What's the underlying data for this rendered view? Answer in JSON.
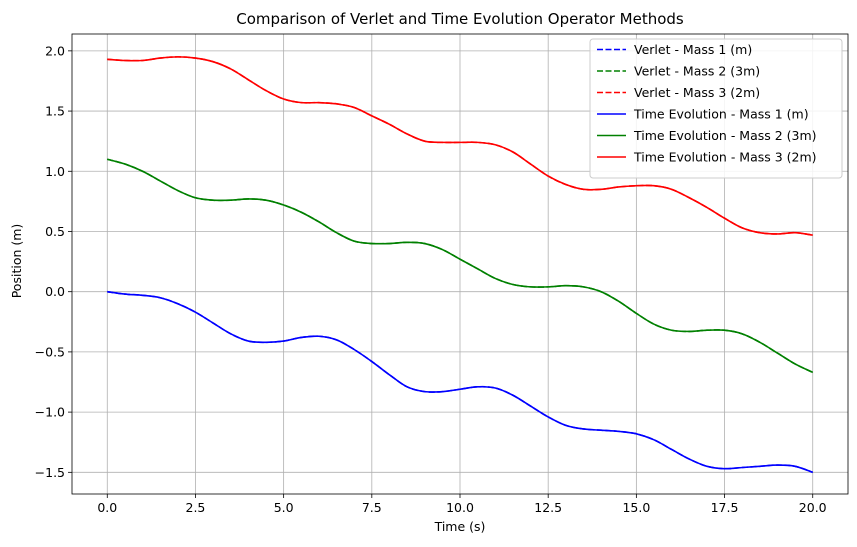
{
  "chart_data": {
    "type": "line",
    "title": "Comparison of Verlet and Time Evolution Operator Methods",
    "xlabel": "Time (s)",
    "ylabel": "Position (m)",
    "xlim": [
      -1.0,
      21.0
    ],
    "ylim": [
      -1.68,
      2.14
    ],
    "xticks": [
      0.0,
      2.5,
      5.0,
      7.5,
      10.0,
      12.5,
      15.0,
      17.5,
      20.0
    ],
    "xtick_labels": [
      "0.0",
      "2.5",
      "5.0",
      "7.5",
      "10.0",
      "12.5",
      "15.0",
      "17.5",
      "20.0"
    ],
    "yticks": [
      -1.5,
      -1.0,
      -0.5,
      0.0,
      0.5,
      1.0,
      1.5,
      2.0
    ],
    "ytick_labels": [
      "−1.5",
      "−1.0",
      "−0.5",
      "0.0",
      "0.5",
      "1.0",
      "1.5",
      "2.0"
    ],
    "grid": true,
    "legend_position": "top-right",
    "x": [
      0,
      0.5,
      1,
      1.5,
      2,
      2.5,
      3,
      3.5,
      4,
      4.5,
      5,
      5.5,
      6,
      6.5,
      7,
      7.5,
      8,
      8.5,
      9,
      9.5,
      10,
      10.5,
      11,
      11.5,
      12,
      12.5,
      13,
      13.5,
      14,
      14.5,
      15,
      15.5,
      16,
      16.5,
      17,
      17.5,
      18,
      18.5,
      19,
      19.5,
      20
    ],
    "series": [
      {
        "name": "Verlet - Mass 1 (m)",
        "color": "#0000ff",
        "style": "dashed",
        "values": [
          0.0,
          -0.02,
          -0.03,
          -0.05,
          -0.1,
          -0.17,
          -0.26,
          -0.35,
          -0.41,
          -0.42,
          -0.41,
          -0.38,
          -0.37,
          -0.4,
          -0.48,
          -0.58,
          -0.69,
          -0.79,
          -0.83,
          -0.83,
          -0.81,
          -0.79,
          -0.8,
          -0.86,
          -0.95,
          -1.04,
          -1.11,
          -1.14,
          -1.15,
          -1.16,
          -1.18,
          -1.23,
          -1.31,
          -1.39,
          -1.45,
          -1.47,
          -1.46,
          -1.45,
          -1.44,
          -1.45,
          -1.5
        ]
      },
      {
        "name": "Verlet - Mass 2 (3m)",
        "color": "#008000",
        "style": "dashed",
        "values": [
          1.1,
          1.06,
          1.0,
          0.92,
          0.84,
          0.78,
          0.76,
          0.76,
          0.77,
          0.76,
          0.72,
          0.66,
          0.58,
          0.49,
          0.42,
          0.4,
          0.4,
          0.41,
          0.4,
          0.35,
          0.27,
          0.19,
          0.11,
          0.06,
          0.04,
          0.04,
          0.05,
          0.04,
          0.0,
          -0.08,
          -0.18,
          -0.27,
          -0.32,
          -0.33,
          -0.32,
          -0.32,
          -0.35,
          -0.42,
          -0.51,
          -0.6,
          -0.67
        ]
      },
      {
        "name": "Verlet - Mass 3 (2m)",
        "color": "#ff0000",
        "style": "dashed",
        "values": [
          1.93,
          1.92,
          1.92,
          1.94,
          1.95,
          1.94,
          1.91,
          1.85,
          1.76,
          1.67,
          1.6,
          1.57,
          1.57,
          1.56,
          1.53,
          1.46,
          1.39,
          1.31,
          1.25,
          1.24,
          1.24,
          1.24,
          1.22,
          1.16,
          1.06,
          0.96,
          0.89,
          0.85,
          0.85,
          0.87,
          0.88,
          0.88,
          0.85,
          0.78,
          0.7,
          0.61,
          0.53,
          0.49,
          0.48,
          0.49,
          0.47
        ]
      },
      {
        "name": "Time Evolution - Mass 1 (m)",
        "color": "#0000ff",
        "style": "solid",
        "values": [
          0.0,
          -0.02,
          -0.03,
          -0.05,
          -0.1,
          -0.17,
          -0.26,
          -0.35,
          -0.41,
          -0.42,
          -0.41,
          -0.38,
          -0.37,
          -0.4,
          -0.48,
          -0.58,
          -0.69,
          -0.79,
          -0.83,
          -0.83,
          -0.81,
          -0.79,
          -0.8,
          -0.86,
          -0.95,
          -1.04,
          -1.11,
          -1.14,
          -1.15,
          -1.16,
          -1.18,
          -1.23,
          -1.31,
          -1.39,
          -1.45,
          -1.47,
          -1.46,
          -1.45,
          -1.44,
          -1.45,
          -1.5
        ]
      },
      {
        "name": "Time Evolution - Mass 2 (3m)",
        "color": "#008000",
        "style": "solid",
        "values": [
          1.1,
          1.06,
          1.0,
          0.92,
          0.84,
          0.78,
          0.76,
          0.76,
          0.77,
          0.76,
          0.72,
          0.66,
          0.58,
          0.49,
          0.42,
          0.4,
          0.4,
          0.41,
          0.4,
          0.35,
          0.27,
          0.19,
          0.11,
          0.06,
          0.04,
          0.04,
          0.05,
          0.04,
          0.0,
          -0.08,
          -0.18,
          -0.27,
          -0.32,
          -0.33,
          -0.32,
          -0.32,
          -0.35,
          -0.42,
          -0.51,
          -0.6,
          -0.67
        ]
      },
      {
        "name": "Time Evolution - Mass 3 (2m)",
        "color": "#ff0000",
        "style": "solid",
        "values": [
          1.93,
          1.92,
          1.92,
          1.94,
          1.95,
          1.94,
          1.91,
          1.85,
          1.76,
          1.67,
          1.6,
          1.57,
          1.57,
          1.56,
          1.53,
          1.46,
          1.39,
          1.31,
          1.25,
          1.24,
          1.24,
          1.24,
          1.22,
          1.16,
          1.06,
          0.96,
          0.89,
          0.85,
          0.85,
          0.87,
          0.88,
          0.88,
          0.85,
          0.78,
          0.7,
          0.61,
          0.53,
          0.49,
          0.48,
          0.49,
          0.47
        ]
      }
    ]
  }
}
